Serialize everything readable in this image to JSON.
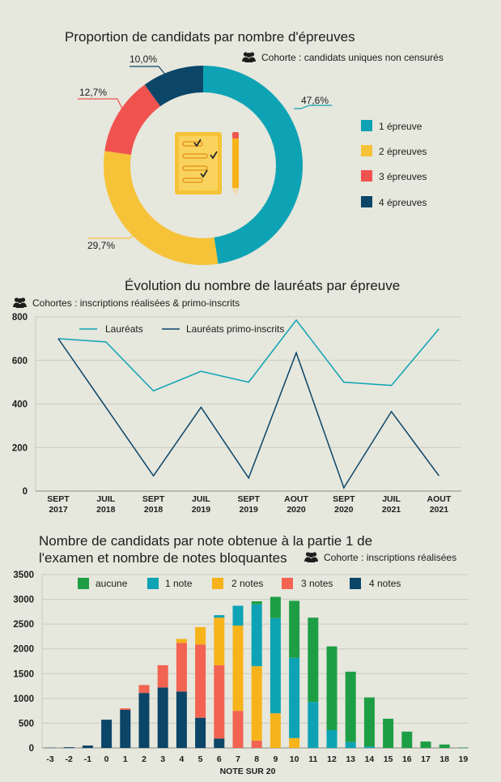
{
  "colors": {
    "background": "#e6e7dd",
    "blue": "#0ea3b4",
    "yellow": "#f6c338",
    "red": "#f0534f",
    "navy": "#0b4568",
    "green": "#1e9e44",
    "orange": "#f7b31a",
    "salmon": "#f26352",
    "grid": "#c9cabf"
  },
  "cohort_icon": "people-icon",
  "center_icon": "checklist-pencil-icon",
  "chart_data": [
    {
      "type": "pie",
      "title": "Proportion de candidats par nombre d'épreuves",
      "subtitle": "Cohorte : candidats uniques non censurés",
      "categories": [
        "1 épreuve",
        "2 épreuves",
        "3 épreuves",
        "4 épreuves"
      ],
      "values": [
        47.6,
        29.7,
        12.7,
        10.0
      ],
      "value_labels": [
        "47,6%",
        "29,7%",
        "12,7%",
        "10,0%"
      ],
      "legend_position": "right"
    },
    {
      "type": "line",
      "title": "Évolution du nombre de lauréats par épreuve",
      "subtitle": "Cohortes : inscriptions réalisées & primo-inscrits",
      "categories": [
        "SEPT 2017",
        "JUIL 2018",
        "SEPT 2018",
        "JUIL 2019",
        "SEPT 2019",
        "AOUT 2020",
        "SEPT 2020",
        "JUIL 2021",
        "AOUT 2021"
      ],
      "series": [
        {
          "name": "Lauréats",
          "values": [
            700,
            685,
            460,
            550,
            500,
            785,
            500,
            485,
            745
          ]
        },
        {
          "name": "Lauréats primo-inscrits",
          "values": [
            700,
            385,
            70,
            385,
            60,
            635,
            15,
            365,
            70
          ]
        }
      ],
      "yticks": [
        "0",
        "200",
        "400",
        "600",
        "800"
      ],
      "ylim": [
        0,
        800
      ],
      "grid": true,
      "legend_position": "top-left"
    },
    {
      "type": "bar",
      "stacked": true,
      "title": "Nombre de candidats par note obtenue à la partie 1 de l'examen et nombre de notes bloquantes",
      "title_lines": [
        "Nombre de candidats par note obtenue à la partie 1 de",
        "l'examen et nombre de notes bloquantes"
      ],
      "subtitle": "Cohorte : inscriptions réalisées",
      "xlabel": "NOTE SUR 20",
      "categories": [
        "-3",
        "-2",
        "-1",
        "0",
        "1",
        "2",
        "3",
        "4",
        "5",
        "6",
        "7",
        "8",
        "9",
        "10",
        "11",
        "12",
        "13",
        "14",
        "15",
        "16",
        "17",
        "18",
        "19"
      ],
      "series": [
        {
          "name": "4 notes",
          "values": [
            5,
            15,
            50,
            570,
            770,
            1110,
            1220,
            1140,
            610,
            190,
            0,
            0,
            0,
            0,
            0,
            0,
            0,
            0,
            0,
            0,
            0,
            0,
            0
          ]
        },
        {
          "name": "3 notes",
          "values": [
            0,
            0,
            0,
            0,
            30,
            160,
            450,
            980,
            1480,
            1480,
            750,
            150,
            0,
            0,
            0,
            0,
            0,
            0,
            0,
            0,
            0,
            0,
            0
          ]
        },
        {
          "name": "2 notes",
          "values": [
            0,
            0,
            0,
            0,
            0,
            0,
            0,
            80,
            350,
            960,
            1720,
            1500,
            700,
            200,
            0,
            0,
            0,
            0,
            0,
            0,
            0,
            0,
            0
          ]
        },
        {
          "name": "1 note",
          "values": [
            0,
            0,
            0,
            0,
            0,
            0,
            0,
            0,
            0,
            50,
            400,
            1250,
            1920,
            1620,
            930,
            360,
            120,
            30,
            0,
            0,
            0,
            0,
            0
          ]
        },
        {
          "name": "aucune",
          "values": [
            0,
            0,
            0,
            0,
            0,
            0,
            0,
            0,
            0,
            0,
            0,
            60,
            430,
            1150,
            1700,
            1690,
            1420,
            990,
            590,
            330,
            130,
            70,
            10
          ]
        }
      ],
      "yticks": [
        "0",
        "500",
        "1000",
        "1500",
        "2000",
        "2500",
        "3000",
        "3500"
      ],
      "ylim": [
        0,
        3500
      ],
      "grid": true,
      "legend_position": "top"
    }
  ]
}
